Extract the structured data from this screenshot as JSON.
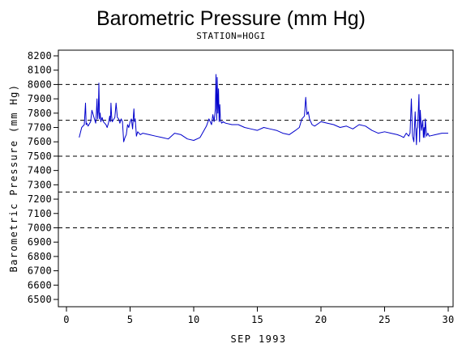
{
  "chart_data": {
    "type": "line",
    "title": "Barometric Pressure (mm Hg)",
    "subtitle": "STATION=HOGI",
    "xlabel": "SEP 1993",
    "ylabel": "Barometric Pressure (mm Hg)",
    "xlim": [
      0,
      30
    ],
    "ylim": [
      6500,
      8200
    ],
    "x_ticks": [
      0,
      5,
      10,
      15,
      20,
      25,
      30
    ],
    "y_ticks": [
      6500,
      6600,
      6700,
      6800,
      6900,
      7000,
      7100,
      7200,
      7300,
      7400,
      7500,
      7600,
      7700,
      7800,
      7900,
      8000,
      8100,
      8200
    ],
    "reference_lines": [
      7000,
      7250,
      7500,
      7750,
      8000
    ],
    "grid": false,
    "colors": {
      "series": "#0000cc",
      "reference": "#000000",
      "axes": "#000000"
    },
    "series": [
      {
        "x": [
          1.0,
          1.2,
          1.4,
          1.5,
          1.55,
          1.6,
          1.7,
          1.9,
          2.0,
          2.2,
          2.3,
          2.35,
          2.4,
          2.45,
          2.5,
          2.55,
          2.6,
          2.65,
          2.7,
          2.8,
          2.9,
          3.0,
          3.1,
          3.2,
          3.3,
          3.4,
          3.45,
          3.5,
          3.55,
          3.6,
          3.8,
          3.9,
          4.0,
          4.1,
          4.2,
          4.3,
          4.4,
          4.5,
          4.6,
          4.7,
          4.8,
          4.9,
          5.0,
          5.1,
          5.2,
          5.3,
          5.35,
          5.4,
          5.45,
          5.5,
          5.6,
          5.7,
          5.8,
          6.0,
          6.5,
          7.0,
          7.5,
          8.0,
          8.5,
          9.0,
          9.5,
          10.0,
          10.5,
          11.0,
          11.2,
          11.4,
          11.5,
          11.6,
          11.7,
          11.75,
          11.8,
          11.85,
          11.9,
          11.95,
          12.0,
          12.05,
          12.1,
          12.2,
          12.3,
          12.5,
          13.0,
          13.5,
          14.0,
          14.5,
          15.0,
          15.5,
          16.0,
          16.5,
          17.0,
          17.5,
          18.0,
          18.3,
          18.5,
          18.7,
          18.8,
          18.9,
          19.0,
          19.1,
          19.2,
          19.3,
          19.5,
          20.0,
          20.5,
          21.0,
          21.5,
          22.0,
          22.5,
          23.0,
          23.5,
          24.0,
          24.5,
          25.0,
          25.5,
          26.0,
          26.3,
          26.5,
          26.7,
          26.9,
          27.0,
          27.1,
          27.2,
          27.3,
          27.4,
          27.5,
          27.55,
          27.6,
          27.7,
          27.75,
          27.8,
          27.9,
          28.0,
          28.05,
          28.1,
          28.15,
          28.2,
          28.3,
          28.4,
          28.5,
          29.0,
          29.5,
          30.0
        ],
        "values": [
          7630,
          7700,
          7720,
          7870,
          7720,
          7730,
          7710,
          7740,
          7820,
          7760,
          7730,
          7800,
          7900,
          7760,
          7810,
          8010,
          7760,
          7800,
          7740,
          7770,
          7740,
          7730,
          7720,
          7700,
          7730,
          7780,
          7740,
          7870,
          7780,
          7740,
          7770,
          7870,
          7770,
          7760,
          7730,
          7760,
          7740,
          7600,
          7630,
          7650,
          7720,
          7700,
          7740,
          7760,
          7690,
          7830,
          7740,
          7760,
          7700,
          7640,
          7670,
          7660,
          7650,
          7660,
          7650,
          7640,
          7630,
          7620,
          7660,
          7650,
          7620,
          7610,
          7630,
          7710,
          7760,
          7720,
          7790,
          7740,
          7830,
          8070,
          7750,
          8050,
          7800,
          7970,
          7740,
          7860,
          7750,
          7730,
          7740,
          7730,
          7720,
          7720,
          7700,
          7690,
          7680,
          7700,
          7690,
          7680,
          7660,
          7650,
          7680,
          7700,
          7760,
          7780,
          7910,
          7790,
          7810,
          7760,
          7740,
          7720,
          7710,
          7740,
          7730,
          7720,
          7700,
          7710,
          7690,
          7720,
          7710,
          7680,
          7660,
          7670,
          7660,
          7650,
          7640,
          7630,
          7660,
          7640,
          7660,
          7900,
          7640,
          7600,
          7810,
          7580,
          7690,
          7700,
          7930,
          7600,
          7820,
          7680,
          7750,
          7630,
          7700,
          7630,
          7760,
          7640,
          7660,
          7640,
          7650,
          7660,
          7660
        ]
      }
    ]
  }
}
